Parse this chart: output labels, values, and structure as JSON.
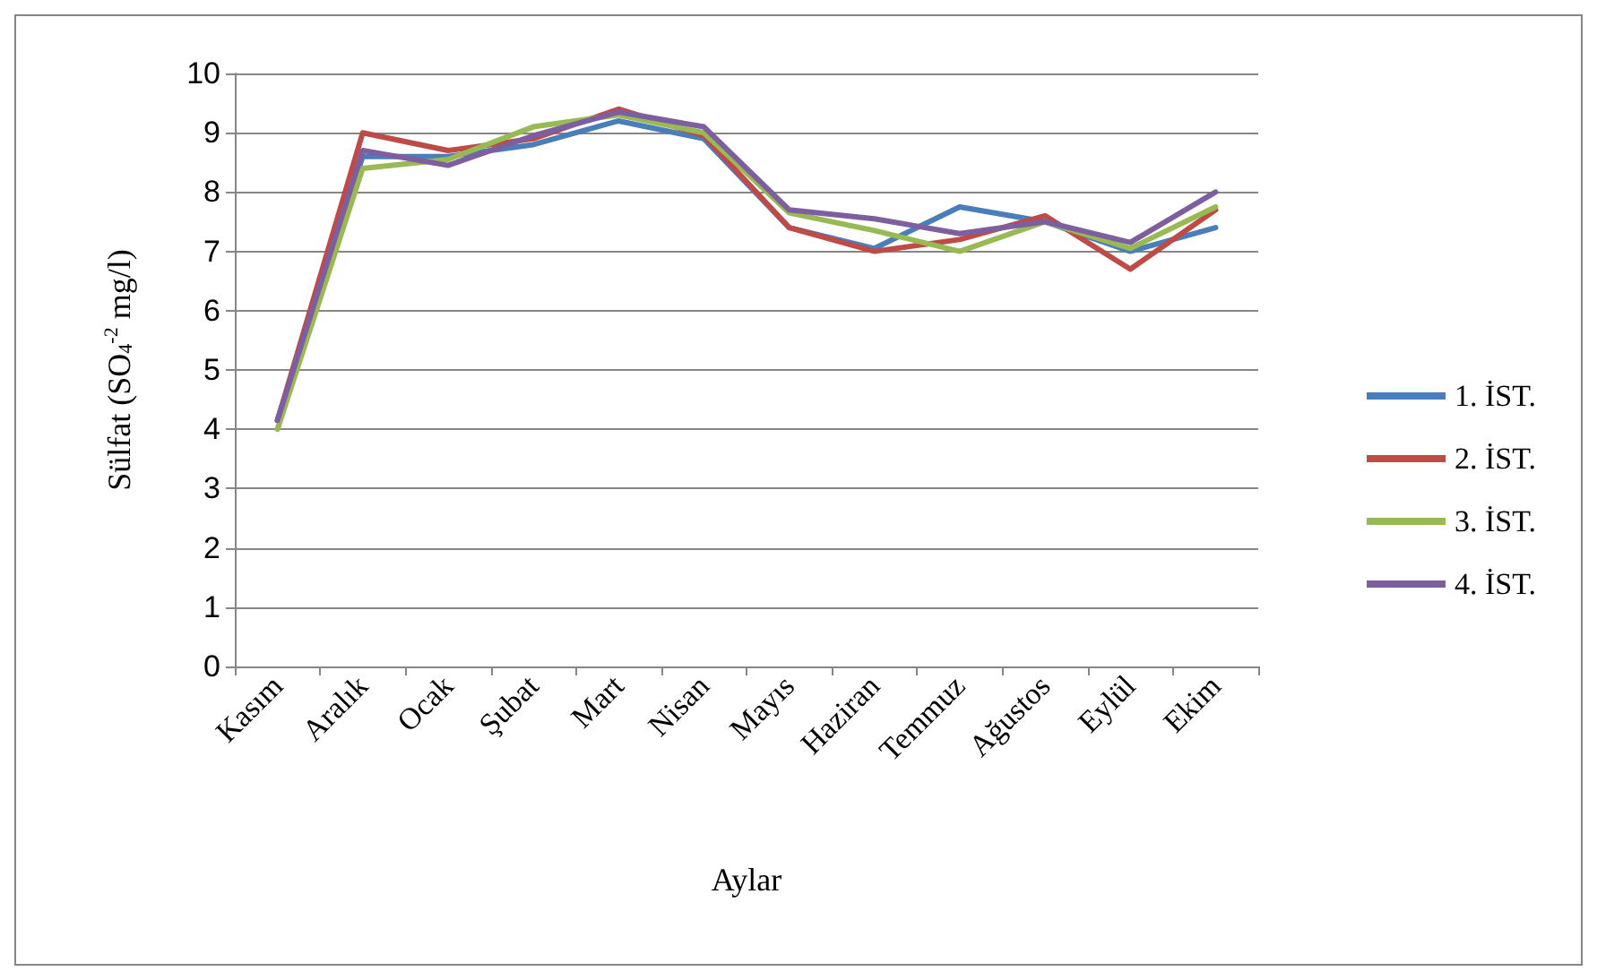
{
  "chart_data": {
    "type": "line",
    "xlabel": "Aylar",
    "ylabel": "Sülfat (SO$_{4}$$^{-2}$ mg/l)",
    "categories": [
      "Kasım",
      "Aralık",
      "Ocak",
      "Şubat",
      "Mart",
      "Nisan",
      "Mayıs",
      "Haziran",
      "Temmuz",
      "Ağustos",
      "Eylül",
      "Ekim"
    ],
    "series": [
      {
        "name": "1. İST.",
        "color": "#4a7ebb",
        "values": [
          4.15,
          8.6,
          8.6,
          8.8,
          9.2,
          8.9,
          7.4,
          7.05,
          7.75,
          7.5,
          7.0,
          7.4
        ]
      },
      {
        "name": "2. İST.",
        "color": "#be4b48",
        "values": [
          4.15,
          9.0,
          8.7,
          8.9,
          9.4,
          8.95,
          7.4,
          7.0,
          7.2,
          7.6,
          6.7,
          7.7
        ]
      },
      {
        "name": "3. İST.",
        "color": "#98b954",
        "values": [
          4.0,
          8.4,
          8.55,
          9.1,
          9.3,
          9.0,
          7.65,
          7.35,
          7.0,
          7.5,
          7.05,
          7.75
        ]
      },
      {
        "name": "4. İST.",
        "color": "#7d5fa0",
        "values": [
          4.15,
          8.7,
          8.45,
          8.95,
          9.35,
          9.1,
          7.7,
          7.55,
          7.3,
          7.5,
          7.15,
          8.0
        ]
      }
    ],
    "ylim": [
      0,
      10
    ],
    "yticks": [
      0,
      1,
      2,
      3,
      4,
      5,
      6,
      7,
      8,
      9,
      10
    ],
    "grid": "y",
    "legend": "right",
    "marker": "none",
    "line_style": "solid"
  }
}
